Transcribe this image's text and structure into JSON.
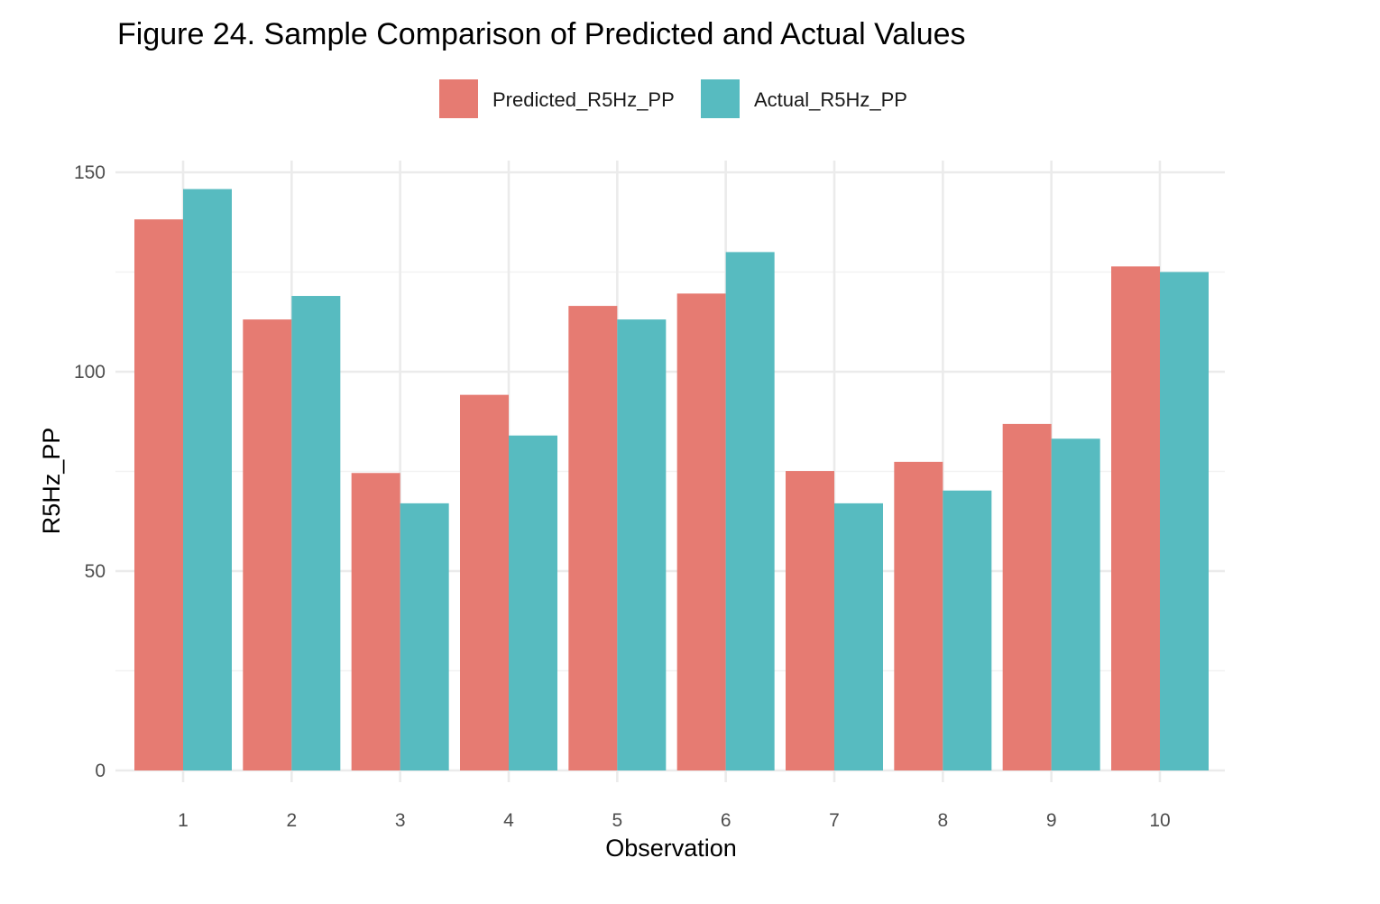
{
  "chart_data": {
    "type": "bar",
    "title": "Figure 24. Sample Comparison of Predicted and Actual Values",
    "xlabel": "Observation",
    "ylabel": "R5Hz_PP",
    "categories": [
      "1",
      "2",
      "3",
      "4",
      "5",
      "6",
      "7",
      "8",
      "9",
      "10"
    ],
    "series": [
      {
        "name": "Predicted_R5Hz_PP",
        "color": "#E67B72",
        "values": [
          138.2,
          113.1,
          74.6,
          94.2,
          116.5,
          119.6,
          75.1,
          77.4,
          86.9,
          126.4
        ]
      },
      {
        "name": "Actual_R5Hz_PP",
        "color": "#57BBC0",
        "values": [
          145.8,
          119.0,
          67.0,
          84.0,
          113.1,
          130.0,
          67.0,
          70.2,
          83.2,
          125.0
        ]
      }
    ],
    "ylim": [
      0,
      150
    ],
    "yticks": [
      "0",
      "50",
      "100",
      "150"
    ],
    "legend_position": "top",
    "grid": true
  }
}
